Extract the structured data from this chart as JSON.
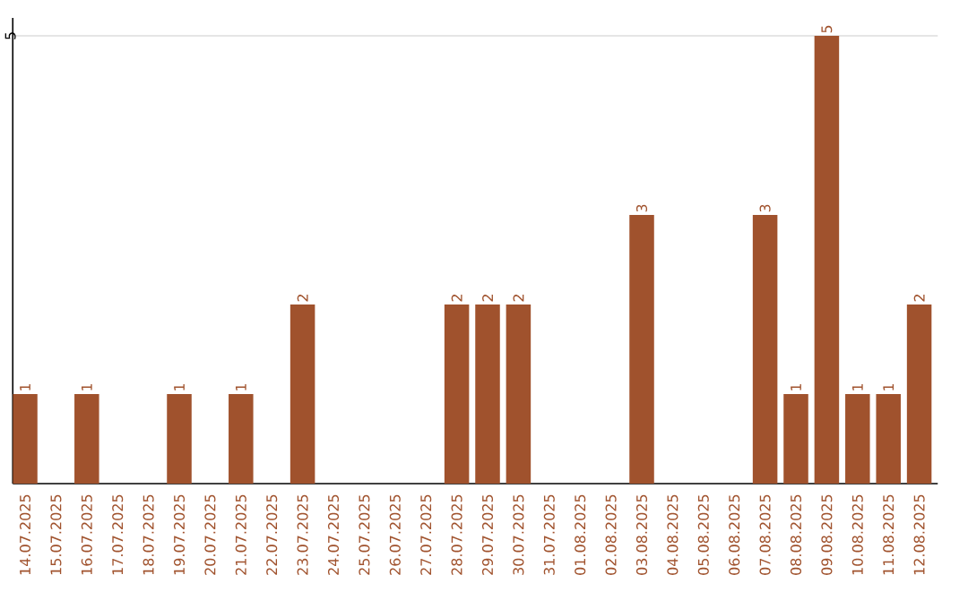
{
  "chart_data": {
    "type": "bar",
    "categories": [
      "14.07.2025",
      "15.07.2025",
      "16.07.2025",
      "17.07.2025",
      "18.07.2025",
      "19.07.2025",
      "20.07.2025",
      "21.07.2025",
      "22.07.2025",
      "23.07.2025",
      "24.07.2025",
      "25.07.2025",
      "26.07.2025",
      "27.07.2025",
      "28.07.2025",
      "29.07.2025",
      "30.07.2025",
      "31.07.2025",
      "01.08.2025",
      "02.08.2025",
      "03.08.2025",
      "04.08.2025",
      "05.08.2025",
      "06.08.2025",
      "07.08.2025",
      "08.08.2025",
      "09.08.2025",
      "10.08.2025",
      "11.08.2025",
      "12.08.2025"
    ],
    "values": [
      1,
      0,
      1,
      0,
      0,
      1,
      0,
      1,
      0,
      2,
      0,
      0,
      0,
      0,
      2,
      2,
      2,
      0,
      0,
      0,
      3,
      0,
      0,
      0,
      3,
      1,
      5,
      1,
      1,
      2
    ],
    "value_labels": [
      "1",
      null,
      "1",
      null,
      null,
      "1",
      null,
      "1",
      null,
      "2",
      null,
      null,
      null,
      null,
      "2",
      "2",
      "2",
      null,
      null,
      null,
      "3",
      null,
      null,
      null,
      "3",
      "1",
      "5",
      "1",
      "1",
      "2"
    ],
    "color": "#a0522d",
    "ylim": [
      0,
      5.2
    ],
    "yticks": [
      5
    ],
    "grid": "y"
  }
}
